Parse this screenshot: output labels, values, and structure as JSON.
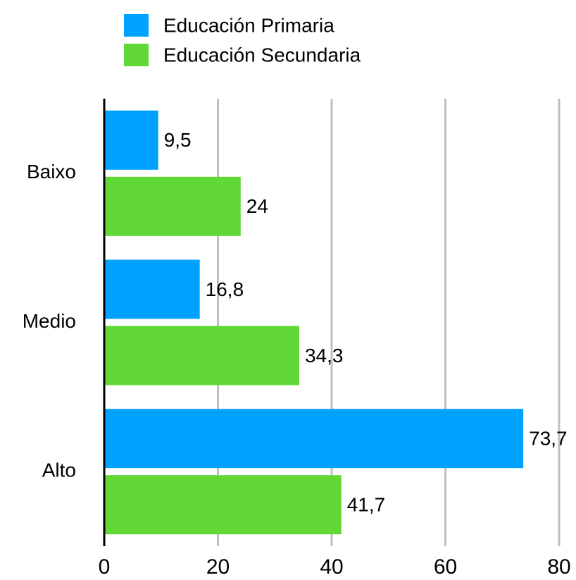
{
  "chart_data": {
    "type": "bar",
    "orientation": "horizontal",
    "categories": [
      "Baixo",
      "Medio",
      "Alto"
    ],
    "series": [
      {
        "name": "Educación Primaria",
        "color": "#00a2ff",
        "values": [
          9.5,
          16.8,
          73.7
        ],
        "value_labels": [
          "9,5",
          "16,8",
          "73,7"
        ]
      },
      {
        "name": "Educación Secundaria",
        "color": "#61d836",
        "values": [
          24,
          34.3,
          41.7
        ],
        "value_labels": [
          "24",
          "34,3",
          "41,7"
        ]
      }
    ],
    "xlim": [
      0,
      80
    ],
    "xticks": [
      0,
      20,
      40,
      60,
      80
    ],
    "grid": true,
    "legend": "top"
  }
}
